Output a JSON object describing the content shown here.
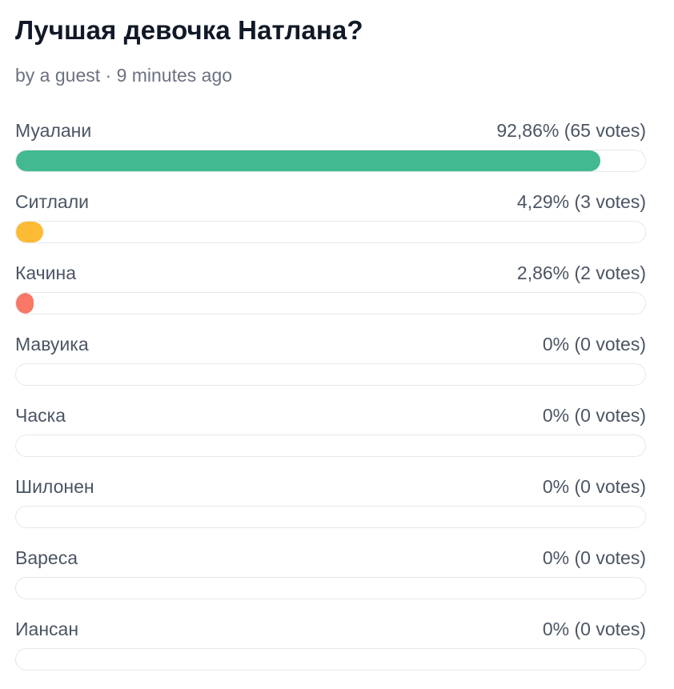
{
  "poll": {
    "title": "Лучшая девочка Натлана?",
    "meta": "by a guest · 9 minutes ago"
  },
  "options": [
    {
      "label": "Муалани",
      "result": "92,86% (65 votes)",
      "percent": 92.86,
      "color": "#42b991"
    },
    {
      "label": "Ситлали",
      "result": "4,29% (3 votes)",
      "percent": 4.29,
      "color": "#fdbb35"
    },
    {
      "label": "Качина",
      "result": "2,86% (2 votes)",
      "percent": 2.86,
      "color": "#f87765"
    },
    {
      "label": "Мавуика",
      "result": "0% (0 votes)",
      "percent": 0,
      "color": "#42b991"
    },
    {
      "label": "Часка",
      "result": "0% (0 votes)",
      "percent": 0,
      "color": "#42b991"
    },
    {
      "label": "Шилонен",
      "result": "0% (0 votes)",
      "percent": 0,
      "color": "#42b991"
    },
    {
      "label": "Вареса",
      "result": "0% (0 votes)",
      "percent": 0,
      "color": "#42b991"
    },
    {
      "label": "Иансан",
      "result": "0% (0 votes)",
      "percent": 0,
      "color": "#42b991"
    }
  ]
}
